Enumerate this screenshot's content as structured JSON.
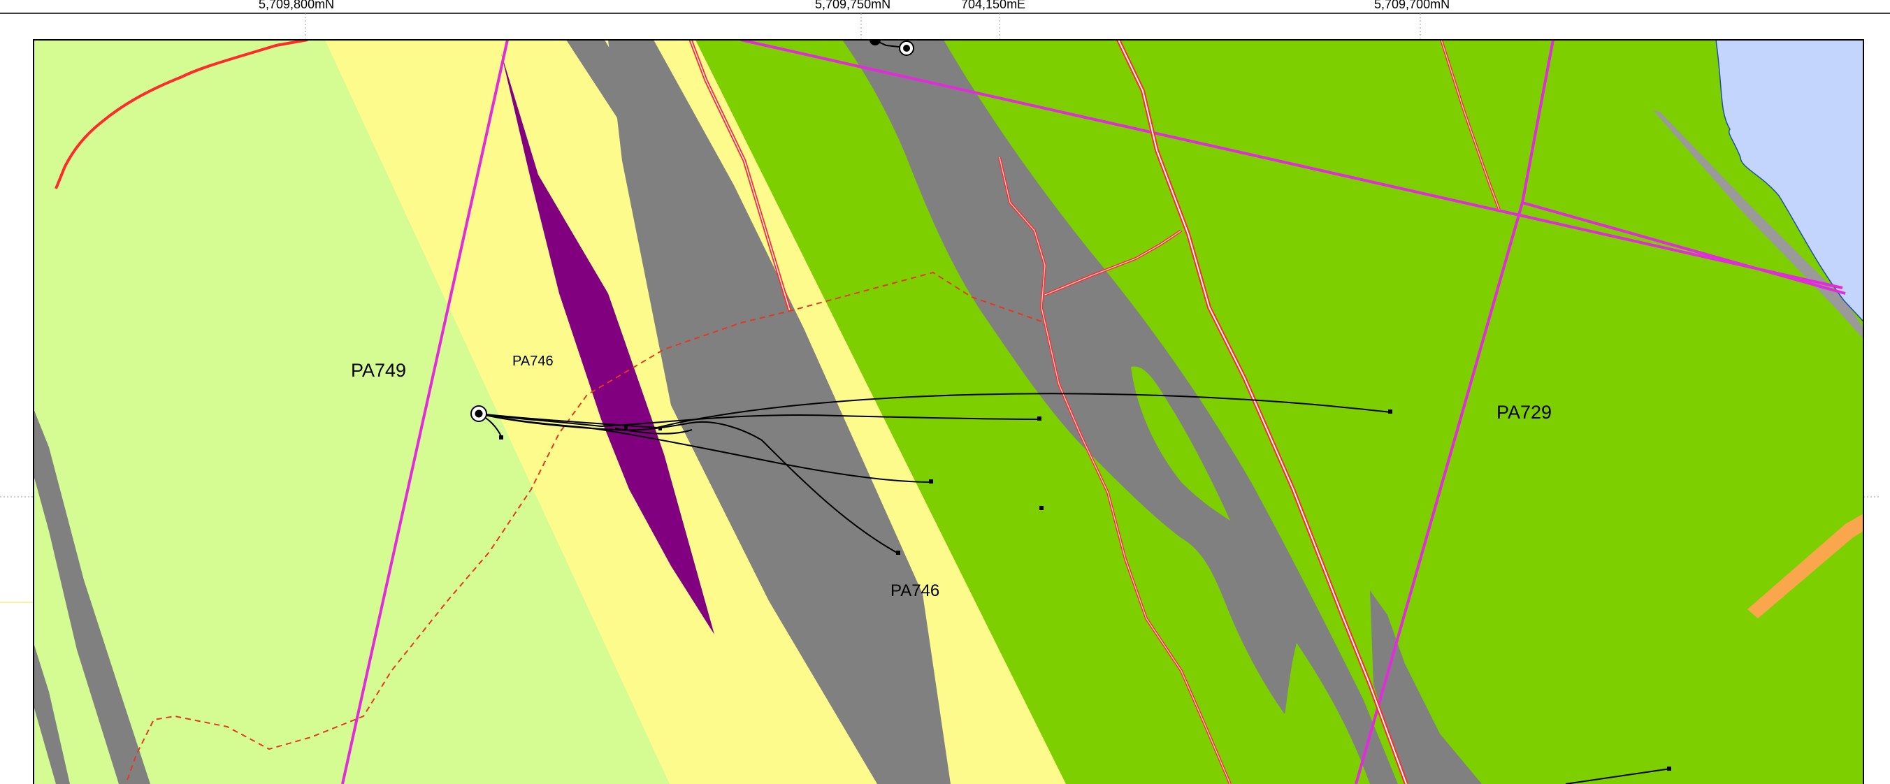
{
  "grid_labels": {
    "top_1": "5,709,800mN",
    "top_2": "5,709,750mN",
    "top_3": "704,150mE",
    "top_4": "5,709,700mN"
  },
  "unit_labels": {
    "pa749": "PA749",
    "pa746_upper": "PA746",
    "pa746_lower": "PA746",
    "pa729": "PA729"
  },
  "colors": {
    "unit_light_green": "#d5fb93",
    "unit_pale_yellow": "#fdfb8c",
    "unit_bright_green": "#7dcf00",
    "unit_gray": "#808080",
    "unit_purple": "#800080",
    "water_blue": "#c3d5fc",
    "orange_unit": "#f9a64d",
    "fault_magenta": "#e02cd9",
    "fault_red": "#ff2a2a",
    "dashed_boundary_red": "#e23a1f",
    "drillhole_black": "#000000"
  }
}
